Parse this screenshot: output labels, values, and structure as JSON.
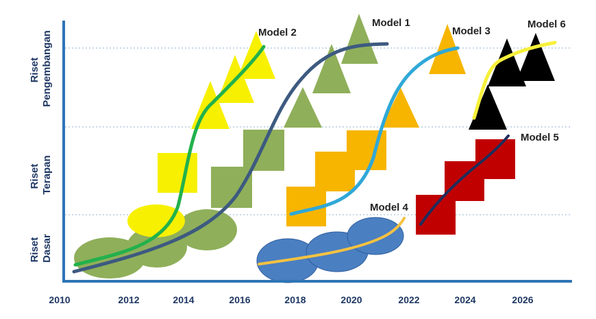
{
  "stages": [
    {
      "lines": [
        "Riset",
        "Pengembangan"
      ]
    },
    {
      "lines": [
        "Riset",
        "Terapan"
      ]
    },
    {
      "lines": [
        "Riset",
        "Dasar"
      ]
    }
  ],
  "years": [
    "2010",
    "2012",
    "2014",
    "2016",
    "2018",
    "2020",
    "2022",
    "2024",
    "2026"
  ],
  "models": [
    {
      "label": "Model 1",
      "line_color": "#3d5a80"
    },
    {
      "label": "Model 2",
      "line_color": "#22b14c"
    },
    {
      "label": "Model 3",
      "line_color": "#2fa8d8"
    },
    {
      "label": "Model 4",
      "line_color": "#f5c242"
    },
    {
      "label": "Model 5",
      "line_color": "#1f2d5c"
    },
    {
      "label": "Model 6",
      "line_color": "#f7f03a"
    }
  ],
  "colors": {
    "axis": "#2e75b6",
    "gridline": "#8fb0d0",
    "green_shapes": "#8faf5a",
    "yellow_shapes": "#f7f000",
    "orange_shapes": "#f7b500",
    "blue_ellipses": "#4a7fc1",
    "red_squares": "#c00000",
    "black_triangles": "#000000"
  }
}
